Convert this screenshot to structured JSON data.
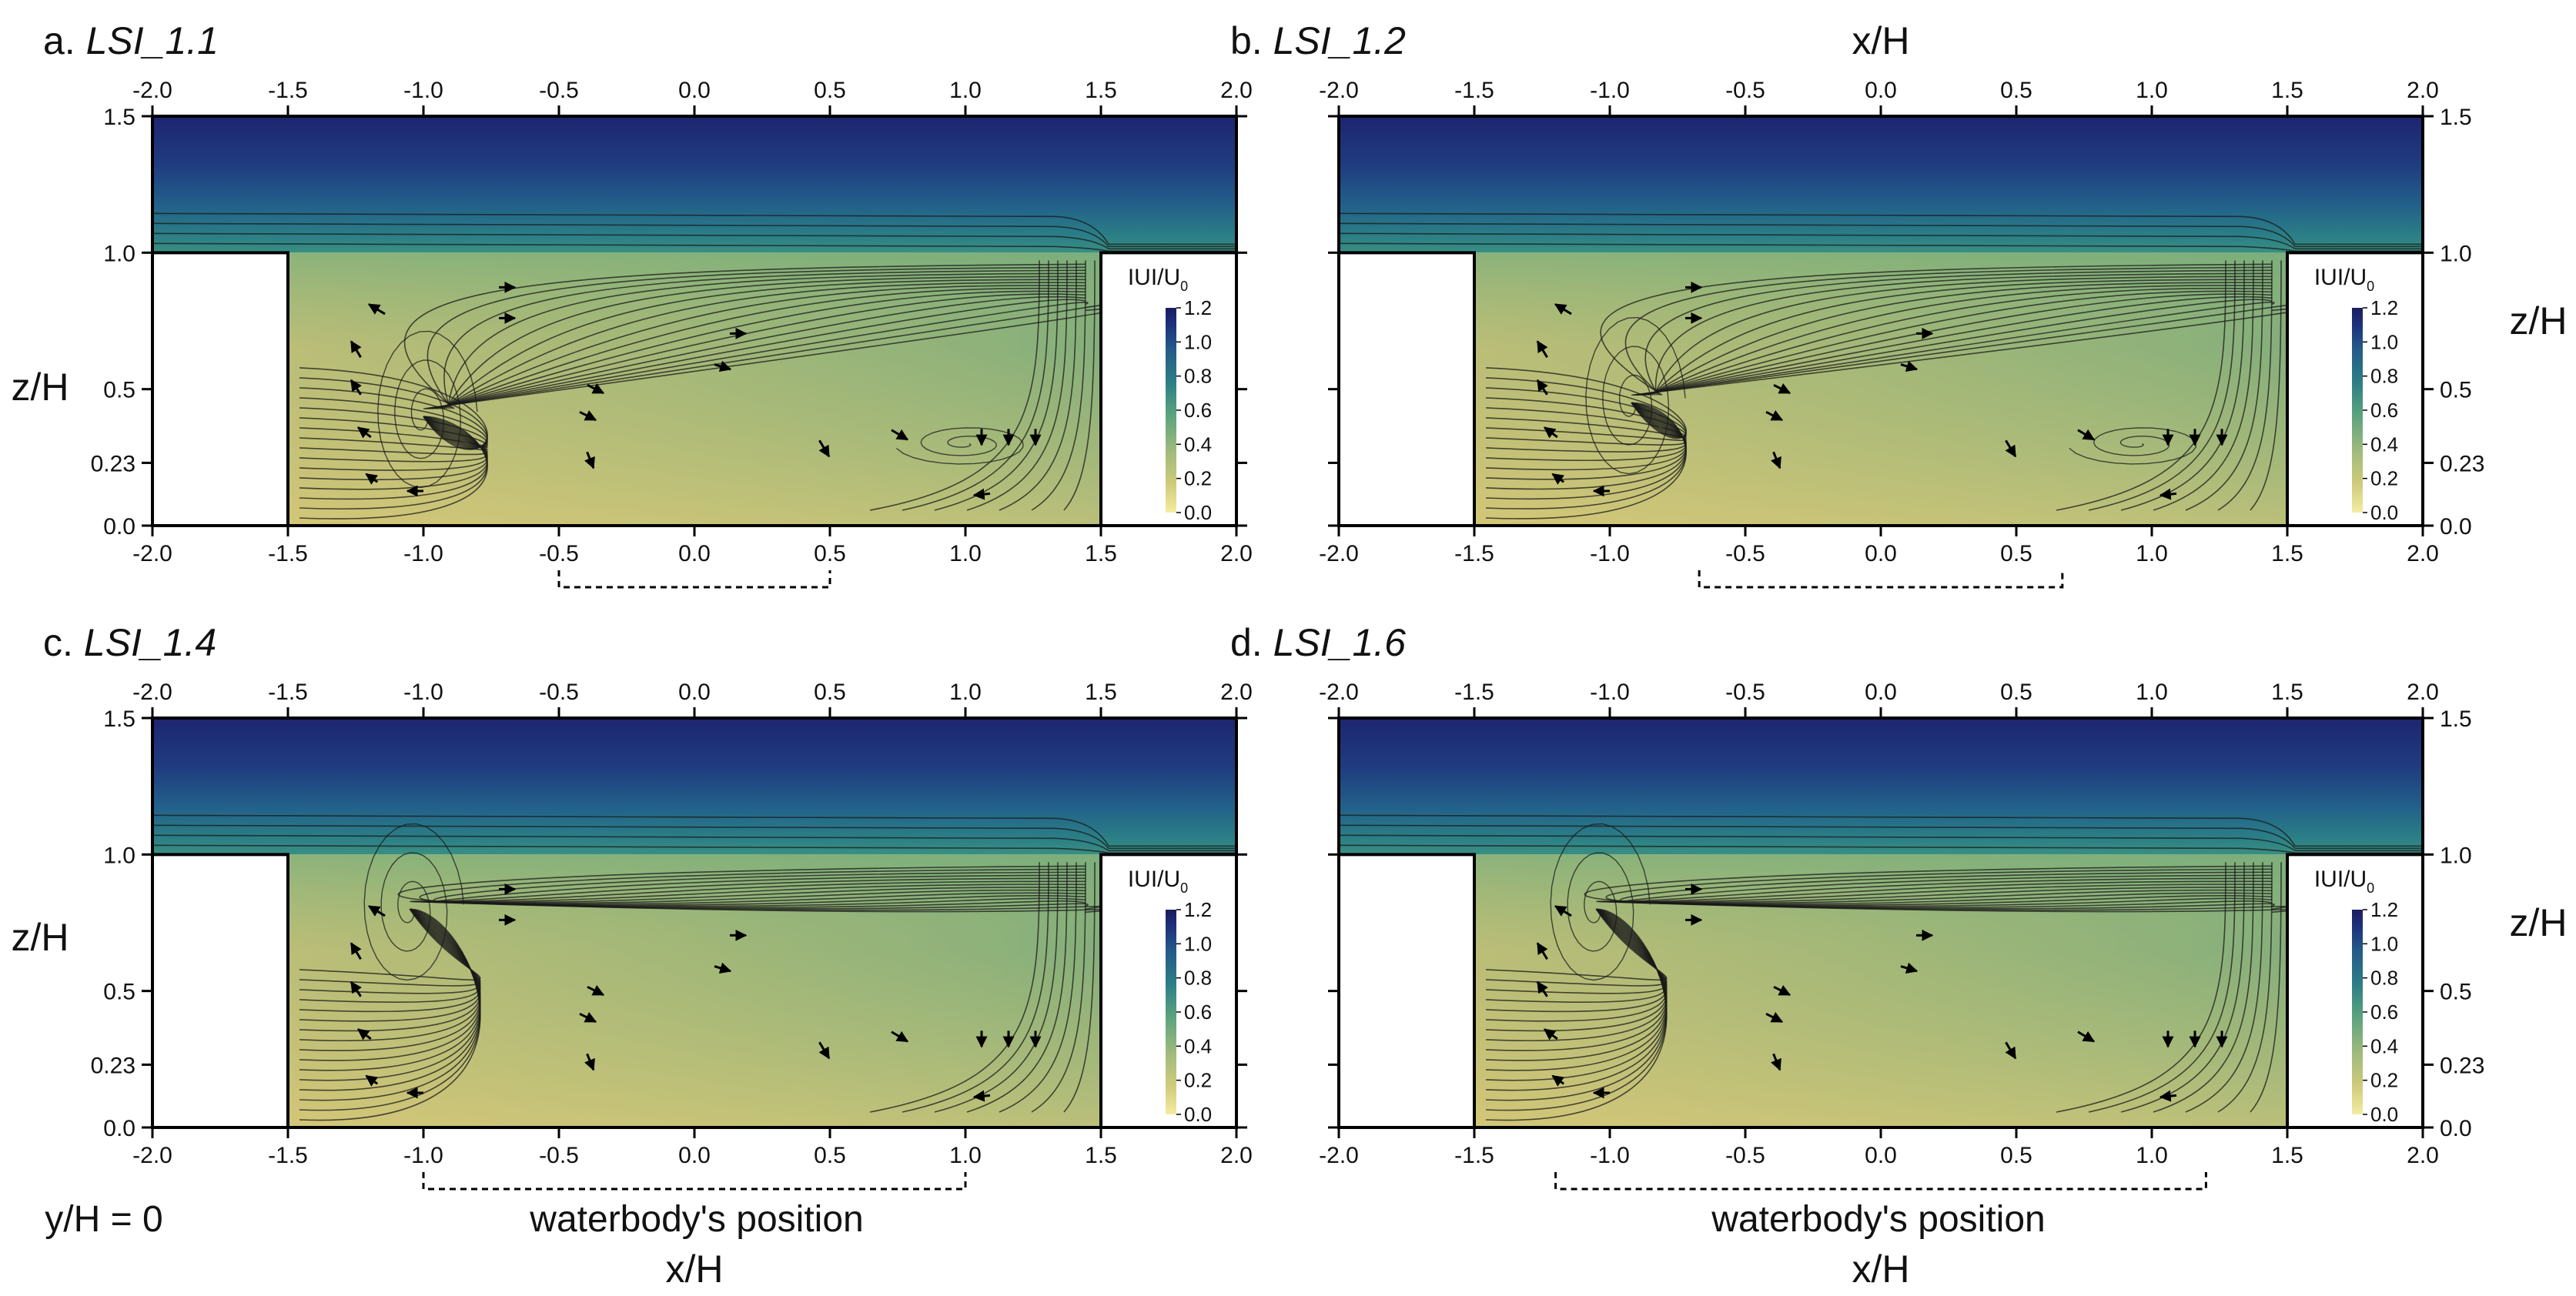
{
  "chart_data": {
    "type": "heatmap",
    "figure": {
      "shared_xlabel": "x/H",
      "shared_ylabel": "z/H",
      "row_label": "y/H = 0",
      "waterbody_label": "waterbody's position"
    },
    "axes": {
      "x_ticks": [
        "-2.0",
        "-1.5",
        "-1.0",
        "-0.5",
        "0.0",
        "0.5",
        "1.0",
        "1.5",
        "2.0"
      ],
      "x_values": [
        -2.0,
        -1.5,
        -1.0,
        -0.5,
        0.0,
        0.5,
        1.0,
        1.5,
        2.0
      ],
      "y_ticks_left": [
        "0.0",
        "0.23",
        "0.5",
        "1.0",
        "1.5"
      ],
      "y_ticks_right": [
        "0.0",
        "0.23",
        "0.5",
        "1.0",
        "1.5"
      ],
      "y_values": [
        0.0,
        0.23,
        0.5,
        1.0,
        1.5
      ],
      "xlim": [
        -2.0,
        2.0
      ],
      "ylim": [
        0.0,
        1.5
      ],
      "buildings": [
        {
          "x_from": -2.0,
          "x_to": -1.5,
          "height": 1.0
        },
        {
          "x_from": 1.5,
          "x_to": 2.0,
          "height": 1.0
        }
      ]
    },
    "colorbar": {
      "title_main": "IUI/U",
      "title_sub": "0",
      "ticks": [
        "0.0",
        "0.2",
        "0.4",
        "0.6",
        "0.8",
        "1.0",
        "1.2"
      ],
      "values": [
        0.0,
        0.2,
        0.4,
        0.6,
        0.8,
        1.0,
        1.2
      ],
      "colormap": [
        "#f4eca2",
        "#cfcb7a",
        "#9fba7c",
        "#59a27e",
        "#2c7d86",
        "#245a88",
        "#1e2f7c",
        "#1b1d5e"
      ]
    },
    "panels": [
      {
        "id": "a",
        "prefix": "a.",
        "title": "LSI_1.1",
        "waterbody": [
          -0.5,
          0.5
        ],
        "vortex": [
          -1.0,
          0.4
        ],
        "secondary_vortex": [
          1.0,
          0.3
        ]
      },
      {
        "id": "b",
        "prefix": "b.",
        "title": "LSI_1.2",
        "waterbody": [
          -0.67,
          0.67
        ],
        "vortex": [
          -0.92,
          0.45
        ],
        "secondary_vortex": [
          0.95,
          0.3
        ]
      },
      {
        "id": "c",
        "prefix": "c.",
        "title": "LSI_1.4",
        "waterbody": [
          -1.0,
          1.0
        ],
        "vortex": [
          -1.05,
          0.8
        ],
        "secondary_vortex": null
      },
      {
        "id": "d",
        "prefix": "d.",
        "title": "LSI_1.6",
        "waterbody": [
          -1.2,
          1.2
        ],
        "vortex": [
          -1.05,
          0.8
        ],
        "secondary_vortex": null
      }
    ]
  }
}
